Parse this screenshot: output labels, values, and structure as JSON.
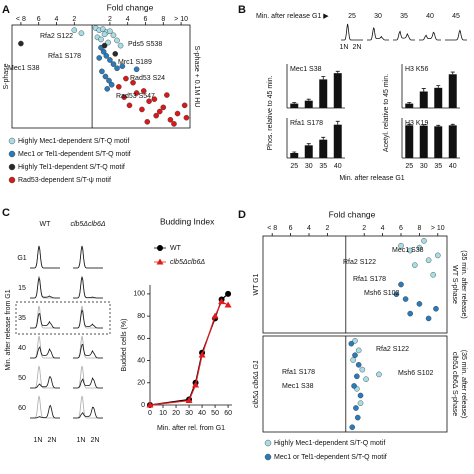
{
  "chart_data": [
    {
      "panel": "A",
      "type": "scatter",
      "title": "Fold change",
      "xlim": [
        -9,
        11
      ],
      "xticks": [
        {
          "value": -8,
          "label": "< 8"
        },
        {
          "value": -6,
          "label": "6"
        },
        {
          "value": -4,
          "label": "4"
        },
        {
          "value": -2,
          "label": "2"
        },
        2,
        4,
        6,
        8,
        {
          "value": 10,
          "label": "> 10"
        }
      ],
      "ylim": [
        0,
        100
      ],
      "series": [
        {
          "name": "Highly Mec1-dependent S/T-Q motif",
          "color": "#a6dde6"
        },
        {
          "name": "Mec1 or Tel1-dependent S/T-Q motif",
          "color": "#2b7bba"
        },
        {
          "name": "Highly Tel1-dependent S/T-Q motif",
          "color": "#2a2a2a"
        },
        {
          "name": "Rad53-dependent S/T-ψ motif",
          "color": "#d7191c"
        }
      ],
      "panels": [
        {
          "y_label_left": "S-phase",
          "y_label_right": [
            "S-phase + 0.1M HU"
          ],
          "series": [
            {
              "x": [
                0.4,
                0.8,
                1.2,
                1.6,
                2.0,
                2.4,
                0.6,
                1.0,
                1.4,
                2.8,
                -1.2,
                -2,
                3.2,
                1.8
              ],
              "values": [
                97,
                95,
                96,
                93,
                94,
                90,
                88,
                86,
                91,
                85,
                92,
                95,
                80,
                83
              ]
            },
            {
              "x": [
                1.0,
                1.3,
                1.6,
                2.0,
                2.4,
                2.8,
                1.1,
                1.5,
                1.9,
                2.2,
                3.4,
                5.0,
                0.8,
                1.7
              ],
              "values": [
                78,
                74,
                70,
                66,
                62,
                58,
                55,
                50,
                46,
                42,
                60,
                57,
                68,
                38
              ]
            },
            {
              "x": [
                -8,
                1.4,
                2.6
              ],
              "values": [
                82,
                80,
                72
              ]
            },
            {
              "x": [
                3,
                3.6,
                4.2,
                5,
                5.6,
                6.4,
                7.2,
                8,
                8.8,
                9.6,
                10.4,
                4.6,
                5.8,
                7,
                8.4,
                9.2,
                10.6,
                6.2,
                7.6,
                3.8
              ],
              "values": [
                40,
                30,
                22,
                34,
                18,
                26,
                12,
                20,
                8,
                14,
                22,
                44,
                36,
                28,
                32,
                4,
                10,
                6,
                16,
                48
              ]
            }
          ],
          "annotations": [
            "Rfa2 S122",
            "Rfa1 S178",
            "Mec1 S38",
            "Pds5 S538",
            "Mrc1 S189",
            "Rad53 S24",
            "Rad53 S547"
          ]
        }
      ]
    },
    {
      "panel": "B",
      "type": "bar",
      "profile_label": "Min. after release G1 ▶",
      "profile_times": [
        "25",
        "30",
        "35",
        "40",
        "45"
      ],
      "profile_axis": [
        "1N",
        "2N"
      ],
      "categories": [
        "25",
        "30",
        "35",
        "40"
      ],
      "x_label": "Min. after release G1",
      "y_labels": [
        "Phos. relative to 45 min.",
        "Acetyl. relative to 45 min."
      ],
      "ylim": [
        0,
        1.2
      ],
      "color": "#111111",
      "panels": [
        {
          "title": "Mec1 S38",
          "values": [
            0.12,
            0.2,
            0.78,
            0.95
          ],
          "errors": [
            0.03,
            0.04,
            0.08,
            0.05
          ]
        },
        {
          "title": "H3 K56",
          "values": [
            0.12,
            0.45,
            0.55,
            0.92
          ],
          "errors": [
            0.03,
            0.08,
            0.06,
            0.06
          ]
        },
        {
          "title": "Rfa1 S178",
          "values": [
            0.15,
            0.38,
            0.55,
            1.0
          ],
          "errors": [
            0.03,
            0.05,
            0.07,
            0.1
          ]
        },
        {
          "title": "H3 K19",
          "values": [
            0.98,
            0.97,
            0.95,
            0.98
          ],
          "errors": [
            0.03,
            0.03,
            0.03,
            0.03
          ]
        }
      ]
    },
    {
      "panel": "C",
      "type": "profiles",
      "columns": [
        "WT",
        "clb5Δclb6Δ"
      ],
      "rows": [
        "G1",
        "15",
        "35",
        "40",
        "50",
        "60"
      ],
      "y_label": "Min. after release from G1",
      "profile_axis": [
        "1N",
        "2N"
      ]
    },
    {
      "type": "line",
      "title": "Budding Index",
      "x_label": "Min. after rel. from G1",
      "y_label": "Budded cells (%)",
      "x": [
        0,
        30,
        35,
        40,
        50,
        55,
        60
      ],
      "xlim": [
        0,
        63
      ],
      "xticks": [
        0,
        10,
        20,
        30,
        40,
        50,
        60
      ],
      "ylim": [
        0,
        108
      ],
      "yticks": [
        0,
        20,
        40,
        60,
        80,
        100
      ],
      "series": [
        {
          "name": "WT",
          "color": "#000000",
          "marker": "circle",
          "values": [
            0,
            5,
            20,
            47,
            78,
            95,
            100
          ]
        },
        {
          "name": "clb5Δclb6Δ",
          "color": "#e31a1c",
          "marker": "triangle",
          "values": [
            0,
            4,
            18,
            45,
            80,
            93,
            90
          ]
        }
      ]
    },
    {
      "panel": "D",
      "type": "scatter",
      "title": "Fold change",
      "xlim": [
        -9,
        11
      ],
      "xticks": [
        {
          "value": -8,
          "label": "< 8"
        },
        {
          "value": -6,
          "label": "6"
        },
        {
          "value": -4,
          "label": "4"
        },
        {
          "value": -2,
          "label": "2"
        },
        2,
        4,
        6,
        8,
        {
          "value": 10,
          "label": "> 10"
        }
      ],
      "ylim": [
        0,
        100
      ],
      "series": [
        {
          "name": "Highly Mec1-dependent S/T-Q motif",
          "color": "#a6dde6"
        },
        {
          "name": "Mec1 or Tel1-dependent S/T-Q motif",
          "color": "#2b7bba"
        }
      ],
      "panels": [
        {
          "y_label_left": "WT G1",
          "y_label_right": [
            "WT S-phase",
            "(35 min. after release)"
          ],
          "series": [
            {
              "x": [
                6,
                7,
                8,
                9,
                10,
                9.5,
                7.5,
                8.5
              ],
              "values": [
                90,
                85,
                88,
                75,
                80,
                60,
                70,
                95
              ]
            },
            {
              "x": [
                5.5,
                6.5,
                7,
                8,
                9,
                9.8,
                6
              ],
              "values": [
                40,
                35,
                20,
                30,
                15,
                25,
                50
              ]
            }
          ],
          "annotations": [
            "Mec1 S38",
            "Rfa2 S122",
            "Rfa1 S178",
            "Msh6 S102"
          ]
        },
        {
          "y_label_left": "clb5Δ clb6Δ G1",
          "y_label_right": [
            "clb5Δ clb6Δ S-phase",
            "(35 min. after release)"
          ],
          "series": [
            {
              "x": [
                1,
                1.4,
                0.8,
                1.8,
                2.2,
                1.2,
                3.6,
                1.6
              ],
              "values": [
                95,
                85,
                75,
                65,
                55,
                45,
                60,
                30
              ]
            },
            {
              "x": [
                0.6,
                1,
                1.4,
                1.2,
                0.9,
                1.6,
                1.1,
                1.3,
                0.7
              ],
              "values": [
                92,
                80,
                70,
                58,
                48,
                38,
                25,
                15,
                5
              ]
            }
          ],
          "annotations": [
            "Rfa2 S122",
            "Rfa1 S178",
            "Msh6 S102",
            "Mec1 S38"
          ]
        }
      ]
    }
  ]
}
